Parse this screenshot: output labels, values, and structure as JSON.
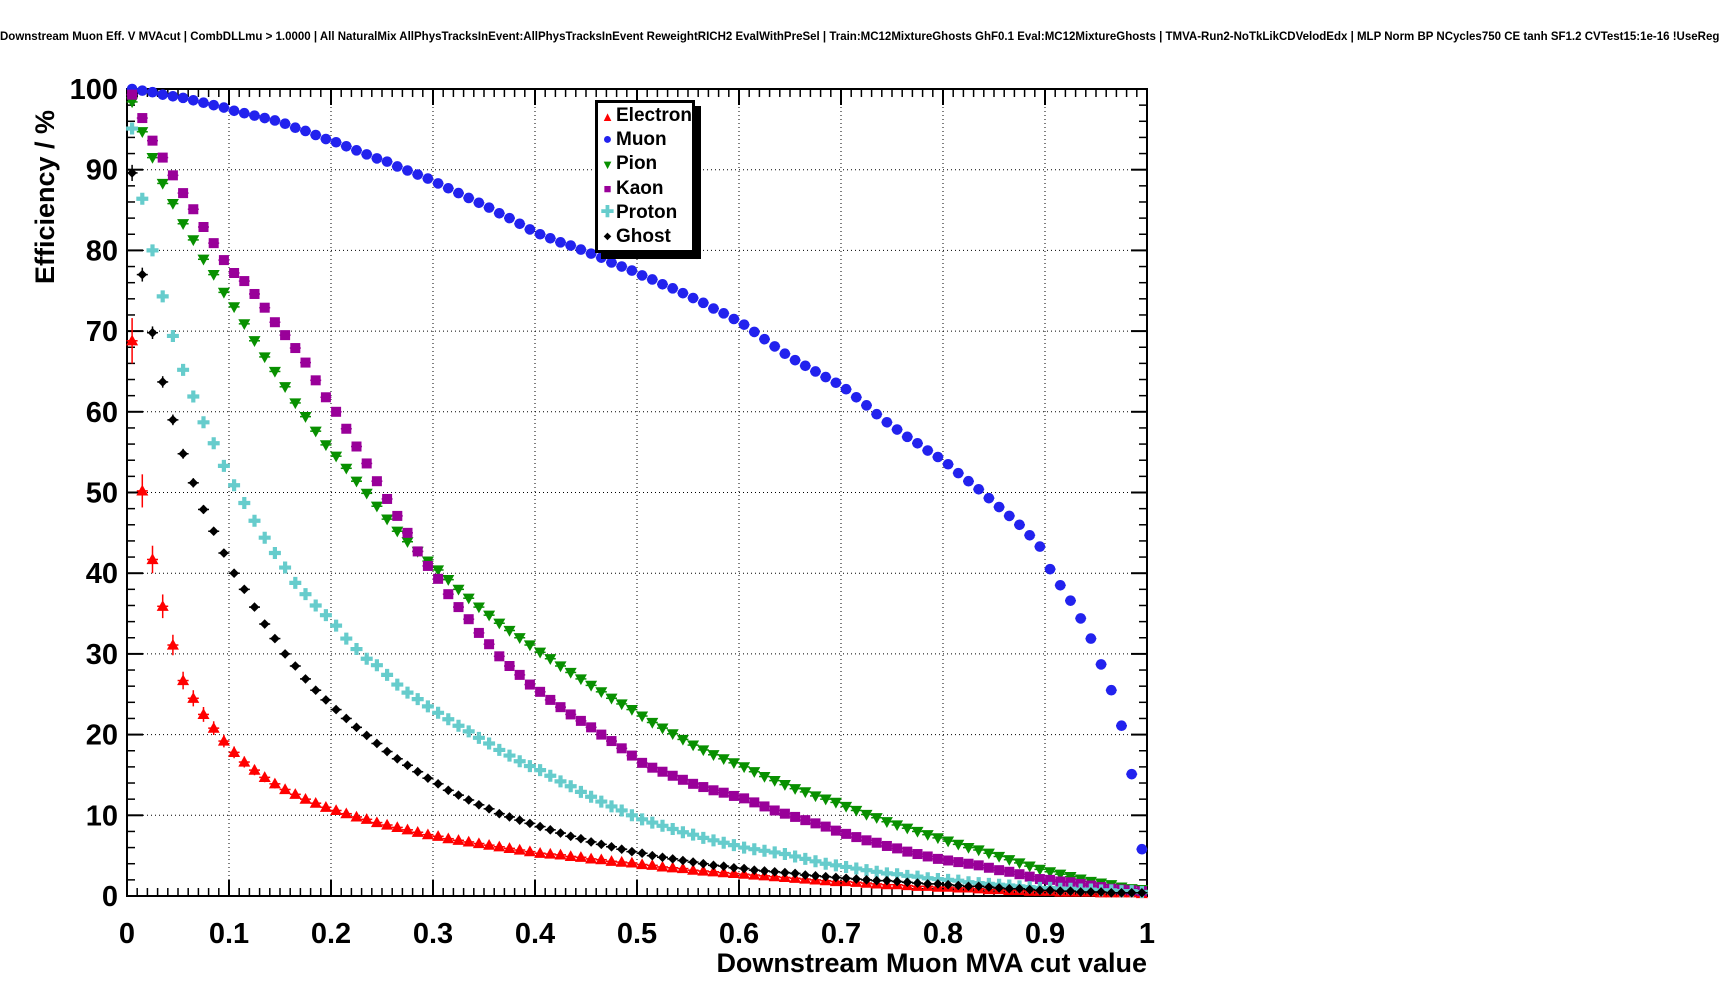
{
  "title": "Downstream Muon Eff. V MVAcut | CombDLLmu > 1.0000 | All NaturalMix AllPhysTracksInEvent:AllPhysTracksInEvent ReweightRICH2 EvalWithPreSel | Train:MC12MixtureGhosts GhF0.1 Eval:MC12MixtureGhosts | TMVA-Run2-NoTkLikCDVelodEdx | MLP Norm BP NCycles750 CE tanh SF1.2 CVTest15:1e-16 !UseReg",
  "axes": {
    "x_label": "Downstream Muon MVA cut value",
    "y_label": "Efficiency / %",
    "x_ticks": [
      0,
      0.1,
      0.2,
      0.3,
      0.4,
      0.5,
      0.6,
      0.7,
      0.8,
      0.9,
      1
    ],
    "x_tick_labels": [
      "0",
      "0.1",
      "0.2",
      "0.3",
      "0.4",
      "0.5",
      "0.6",
      "0.7",
      "0.8",
      "0.9",
      "1"
    ],
    "y_ticks": [
      0,
      10,
      20,
      30,
      40,
      50,
      60,
      70,
      80,
      90,
      100
    ],
    "y_tick_labels": [
      "0",
      "10",
      "20",
      "30",
      "40",
      "50",
      "60",
      "70",
      "80",
      "90",
      "100"
    ],
    "grid": "dotted"
  },
  "legend": {
    "position": "top-center",
    "entries": [
      {
        "label": "Electron",
        "marker": "triangle-up",
        "color": "#ff0000"
      },
      {
        "label": "Muon",
        "marker": "circle",
        "color": "#2222ee"
      },
      {
        "label": "Pion",
        "marker": "triangle-down",
        "color": "#089000"
      },
      {
        "label": "Kaon",
        "marker": "square",
        "color": "#990099"
      },
      {
        "label": "Proton",
        "marker": "plus",
        "color": "#66cccc"
      },
      {
        "label": "Ghost",
        "marker": "diamond",
        "color": "#000000"
      }
    ]
  },
  "chart_data": {
    "type": "scatter",
    "title": "Downstream Muon Eff. V MVAcut",
    "xlabel": "Downstream Muon MVA cut value",
    "ylabel": "Efficiency / %",
    "xlim": [
      0,
      1
    ],
    "ylim": [
      0,
      100
    ],
    "grid": true,
    "x_start": 0.005,
    "x_step": 0.01,
    "series": [
      {
        "name": "Electron",
        "color": "#ff0000",
        "marker": "triangle-up",
        "yerr_factor": 0.33,
        "values": [
          68.8,
          50.2,
          41.7,
          35.9,
          31.1,
          26.7,
          24.5,
          22.5,
          20.8,
          19.2,
          17.8,
          16.6,
          15.6,
          14.7,
          13.9,
          13.2,
          12.6,
          12.0,
          11.5,
          11.0,
          10.6,
          10.2,
          9.8,
          9.5,
          9.1,
          8.8,
          8.5,
          8.2,
          7.9,
          7.6,
          7.4,
          7.1,
          6.9,
          6.7,
          6.5,
          6.3,
          6.1,
          5.9,
          5.7,
          5.5,
          5.3,
          5.2,
          5.1,
          4.9,
          4.8,
          4.6,
          4.5,
          4.3,
          4.2,
          4.1,
          3.9,
          3.8,
          3.6,
          3.5,
          3.4,
          3.2,
          3.1,
          3.0,
          2.9,
          2.8,
          2.7,
          2.6,
          2.5,
          2.4,
          2.3,
          2.2,
          2.1,
          2.0,
          1.9,
          1.8,
          1.8,
          1.7,
          1.6,
          1.5,
          1.4,
          1.4,
          1.3,
          1.2,
          1.2,
          1.1,
          1.1,
          1.0,
          1.0,
          0.9,
          0.8,
          0.8,
          0.7,
          0.7,
          0.6,
          0.6,
          0.6,
          0.5,
          0.5,
          0.5,
          0.5,
          0.4,
          0.4,
          0.4,
          0.4,
          0.3
        ]
      },
      {
        "name": "Muon",
        "color": "#2222ee",
        "marker": "circle",
        "yerr_factor": 0.04,
        "values": [
          100,
          99.8,
          99.6,
          99.3,
          99.1,
          98.9,
          98.6,
          98.3,
          98.0,
          97.7,
          97.3,
          97.0,
          96.7,
          96.4,
          96.1,
          95.7,
          95.2,
          94.8,
          94.3,
          93.8,
          93.4,
          92.9,
          92.4,
          91.9,
          91.4,
          91.0,
          90.4,
          89.9,
          89.4,
          88.9,
          88.3,
          87.7,
          87.1,
          86.5,
          85.9,
          85.3,
          84.6,
          84.0,
          83.3,
          82.6,
          82.0,
          81.5,
          81.0,
          80.6,
          80.1,
          79.6,
          79.1,
          78.5,
          78.0,
          77.5,
          76.9,
          76.4,
          75.8,
          75.3,
          74.7,
          74.1,
          73.5,
          72.8,
          72.2,
          71.5,
          70.8,
          69.9,
          69.0,
          68.1,
          67.2,
          66.4,
          65.7,
          65.0,
          64.3,
          63.6,
          62.8,
          61.8,
          60.8,
          59.7,
          58.7,
          57.8,
          56.9,
          56.1,
          55.2,
          54.4,
          53.5,
          52.4,
          51.4,
          50.4,
          49.3,
          48.2,
          47.1,
          46.0,
          44.7,
          43.3,
          40.5,
          38.5,
          36.6,
          34.4,
          31.9,
          28.7,
          25.5,
          21.1,
          15.1,
          5.8
        ]
      },
      {
        "name": "Pion",
        "color": "#089000",
        "marker": "triangle-down",
        "yerr_factor": 0.04,
        "values": [
          98.4,
          94.7,
          91.5,
          88.3,
          85.8,
          83.3,
          81.3,
          78.9,
          77.0,
          74.8,
          73.0,
          70.9,
          68.8,
          66.8,
          65.0,
          63.1,
          61.1,
          59.4,
          57.6,
          55.9,
          54.5,
          53.0,
          51.4,
          49.9,
          48.3,
          46.7,
          45.2,
          43.9,
          42.7,
          41.5,
          40.4,
          39.2,
          38.0,
          36.9,
          35.8,
          34.8,
          33.8,
          32.9,
          32.0,
          31.1,
          30.2,
          29.4,
          28.5,
          27.7,
          26.9,
          26.1,
          25.3,
          24.5,
          23.8,
          23.1,
          22.3,
          21.5,
          20.8,
          20.1,
          19.4,
          18.7,
          18.1,
          17.5,
          17.0,
          16.5,
          16.0,
          15.4,
          14.8,
          14.3,
          13.8,
          13.3,
          12.9,
          12.4,
          12.0,
          11.6,
          11.1,
          10.6,
          10.1,
          9.7,
          9.2,
          8.8,
          8.4,
          8.0,
          7.6,
          7.2,
          6.8,
          6.4,
          6.0,
          5.7,
          5.3,
          4.9,
          4.5,
          4.1,
          3.7,
          3.3,
          3.0,
          2.7,
          2.4,
          2.1,
          1.8,
          1.6,
          1.4,
          1.1,
          0.9,
          0.8
        ]
      },
      {
        "name": "Kaon",
        "color": "#990099",
        "marker": "square",
        "yerr_factor": 0.04,
        "values": [
          99.3,
          96.4,
          93.6,
          91.5,
          89.3,
          87.1,
          85.1,
          82.9,
          80.9,
          78.8,
          77.2,
          76.2,
          74.6,
          72.9,
          71.1,
          69.5,
          67.9,
          66.1,
          63.9,
          61.8,
          60.0,
          57.9,
          55.7,
          53.6,
          51.4,
          49.2,
          47.1,
          45.0,
          42.7,
          40.9,
          39.3,
          37.4,
          35.8,
          34.3,
          32.6,
          31.2,
          29.7,
          28.5,
          27.4,
          26.2,
          25.3,
          24.3,
          23.4,
          22.5,
          21.7,
          20.9,
          20.0,
          19.2,
          18.3,
          17.4,
          16.5,
          15.9,
          15.4,
          14.9,
          14.4,
          13.9,
          13.5,
          13.1,
          12.8,
          12.4,
          12.1,
          11.6,
          11.1,
          10.6,
          10.2,
          9.8,
          9.4,
          9.0,
          8.6,
          8.1,
          7.7,
          7.3,
          6.9,
          6.6,
          6.2,
          5.9,
          5.5,
          5.2,
          4.9,
          4.6,
          4.4,
          4.2,
          4.0,
          3.8,
          3.5,
          3.2,
          3.0,
          2.7,
          2.4,
          2.1,
          2.0,
          1.8,
          1.7,
          1.5,
          1.3,
          1.1,
          0.9,
          0.8,
          0.7,
          0.6
        ]
      },
      {
        "name": "Proton",
        "color": "#66cccc",
        "marker": "plus",
        "yerr_factor": 0.05,
        "values": [
          95.1,
          86.4,
          80.0,
          74.3,
          69.4,
          65.2,
          61.9,
          58.7,
          56.1,
          53.3,
          50.9,
          48.7,
          46.5,
          44.4,
          42.5,
          40.7,
          38.8,
          37.4,
          36.0,
          34.8,
          33.5,
          31.9,
          30.6,
          29.4,
          28.6,
          27.4,
          26.2,
          25.2,
          24.4,
          23.5,
          22.7,
          21.9,
          21.1,
          20.4,
          19.6,
          18.9,
          18.1,
          17.4,
          16.7,
          16.1,
          15.6,
          14.9,
          14.2,
          13.6,
          12.9,
          12.3,
          11.7,
          11.1,
          10.6,
          10.0,
          9.5,
          9.1,
          8.7,
          8.3,
          7.9,
          7.6,
          7.2,
          6.9,
          6.6,
          6.3,
          6.0,
          5.8,
          5.6,
          5.4,
          5.2,
          4.9,
          4.6,
          4.3,
          4.0,
          3.8,
          3.6,
          3.4,
          3.2,
          3.0,
          2.8,
          2.7,
          2.5,
          2.4,
          2.2,
          2.1,
          2.0,
          1.9,
          1.7,
          1.6,
          1.5,
          1.4,
          1.3,
          1.2,
          1.1,
          1.0,
          1.0,
          0.9,
          0.9,
          0.8,
          0.8,
          0.7,
          0.7,
          0.6,
          0.6,
          0.5
        ]
      },
      {
        "name": "Ghost",
        "color": "#000000",
        "marker": "diamond",
        "yerr_factor": 0.09,
        "values": [
          89.6,
          77.0,
          69.8,
          63.7,
          59.0,
          54.8,
          51.2,
          47.9,
          45.2,
          42.5,
          40.0,
          38.0,
          35.8,
          33.7,
          31.9,
          30.0,
          28.5,
          26.9,
          25.5,
          24.3,
          23.1,
          22.0,
          20.9,
          19.9,
          18.9,
          17.9,
          17.0,
          16.2,
          15.4,
          14.6,
          13.9,
          13.1,
          12.5,
          11.9,
          11.3,
          10.8,
          10.2,
          9.8,
          9.4,
          9.0,
          8.6,
          8.2,
          7.8,
          7.4,
          7.1,
          6.7,
          6.4,
          6.1,
          5.8,
          5.5,
          5.3,
          5.0,
          4.8,
          4.6,
          4.4,
          4.2,
          4.0,
          3.8,
          3.7,
          3.5,
          3.4,
          3.2,
          3.1,
          3.0,
          2.9,
          2.8,
          2.6,
          2.5,
          2.4,
          2.3,
          2.2,
          2.1,
          2.0,
          1.9,
          1.9,
          1.8,
          1.7,
          1.6,
          1.5,
          1.5,
          1.4,
          1.3,
          1.2,
          1.2,
          1.1,
          1.0,
          0.9,
          0.9,
          0.8,
          0.7,
          0.7,
          0.6,
          0.6,
          0.5,
          0.5,
          0.5,
          0.4,
          0.4,
          0.4,
          0.4
        ]
      }
    ]
  }
}
